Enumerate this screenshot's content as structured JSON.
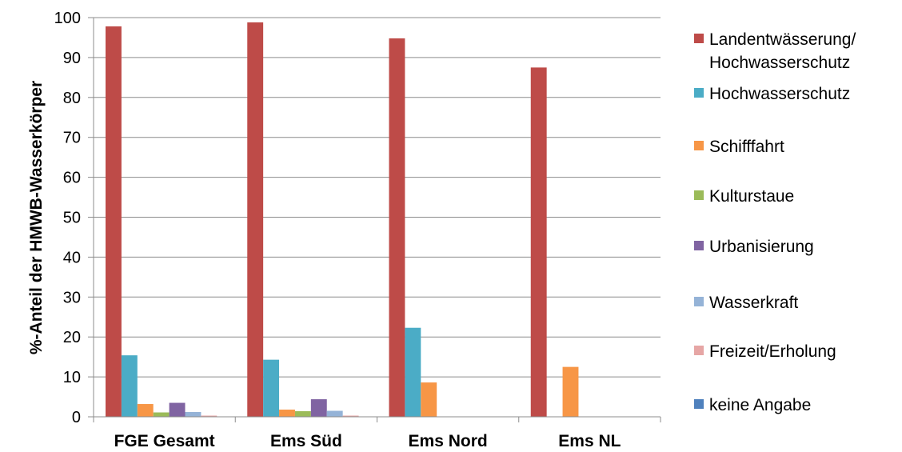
{
  "chart_data": {
    "type": "bar",
    "title": "",
    "xlabel": "",
    "ylabel": "%-Anteil der HMWB-Wasserkörper",
    "ylim": [
      0,
      100
    ],
    "yticks": [
      0,
      10,
      20,
      30,
      40,
      50,
      60,
      70,
      80,
      90,
      100
    ],
    "grid": true,
    "legend_position": "right",
    "categories": [
      "FGE Gesamt",
      "Ems Süd",
      "Ems Nord",
      "Ems NL"
    ],
    "series": [
      {
        "name": "Landentwässerung/ Hochwasserschutz",
        "name_lines": [
          "Landentwässerung/",
          "Hochwasserschutz"
        ],
        "color": "#BE4B48",
        "values": [
          97.8,
          98.8,
          94.8,
          87.5
        ]
      },
      {
        "name": "Hochwasserschutz",
        "name_lines": [
          "Hochwasserschutz"
        ],
        "color": "#4BACC6",
        "values": [
          15.4,
          14.3,
          22.3,
          0
        ]
      },
      {
        "name": "Schifffahrt",
        "name_lines": [
          "Schifffahrt"
        ],
        "color": "#F79646",
        "values": [
          3.2,
          1.8,
          8.6,
          12.5
        ]
      },
      {
        "name": "Kulturstaue",
        "name_lines": [
          "Kulturstaue"
        ],
        "color": "#9BBB59",
        "values": [
          1.1,
          1.4,
          0,
          0
        ]
      },
      {
        "name": "Urbanisierung",
        "name_lines": [
          "Urbanisierung"
        ],
        "color": "#8064A2",
        "values": [
          3.5,
          4.4,
          0,
          0
        ]
      },
      {
        "name": "Wasserkraft",
        "name_lines": [
          "Wasserkraft"
        ],
        "color": "#95B3D7",
        "values": [
          1.2,
          1.5,
          0,
          0
        ]
      },
      {
        "name": "Freizeit/Erholung",
        "name_lines": [
          "Freizeit/Erholung"
        ],
        "color": "#E6A6A5",
        "values": [
          0.3,
          0.3,
          0,
          0
        ]
      },
      {
        "name": "keine Angabe",
        "name_lines": [
          "keine Angabe"
        ],
        "color": "#4F81BD",
        "values": [
          0,
          0,
          0,
          0
        ]
      }
    ]
  }
}
